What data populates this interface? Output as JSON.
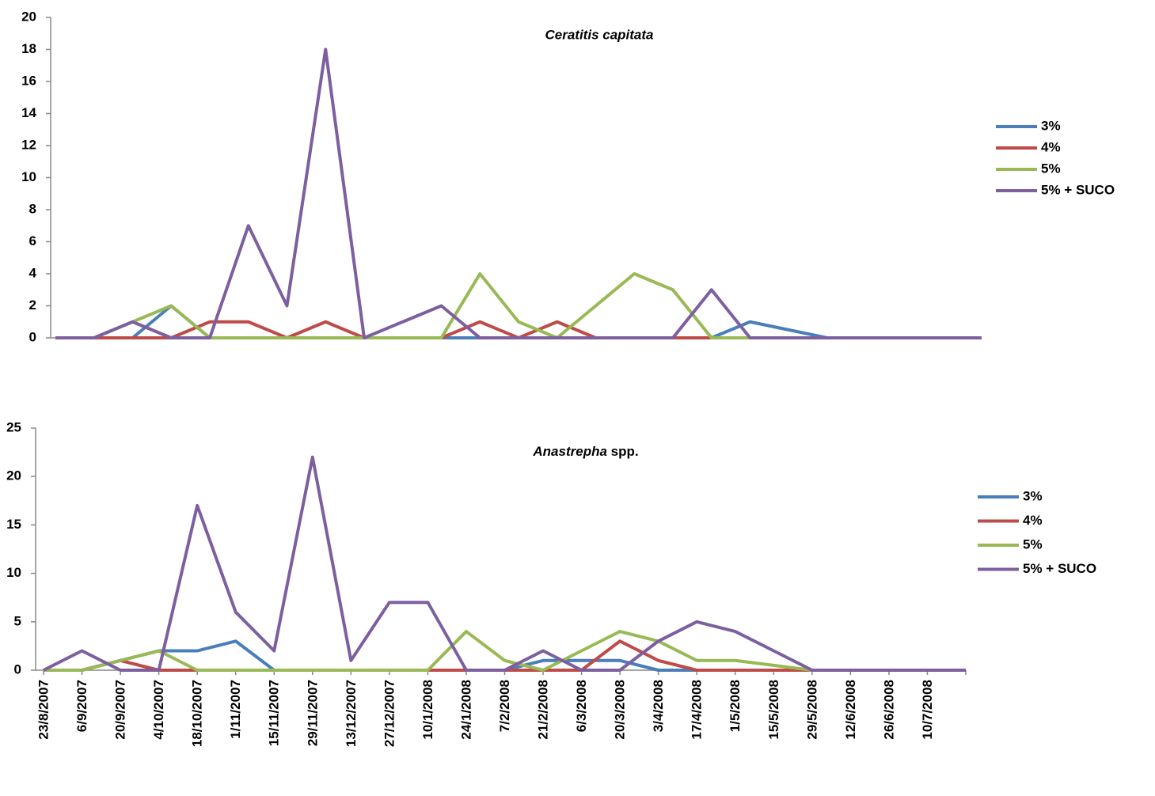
{
  "chart_data": [
    {
      "type": "line",
      "title": "Ceratitis capitata",
      "ylim": [
        0,
        20
      ],
      "yticks": [
        0,
        2,
        4,
        6,
        8,
        10,
        12,
        14,
        16,
        18,
        20
      ],
      "series": [
        {
          "name": "3%",
          "color": "#4a7ebb",
          "values": [
            0,
            0,
            0,
            2,
            0,
            0,
            0,
            0,
            0,
            0,
            0,
            0,
            0,
            0,
            0,
            0,
            0,
            0,
            1,
            0.5,
            0,
            0,
            0,
            0,
            0
          ]
        },
        {
          "name": "4%",
          "color": "#be4b48",
          "values": [
            0,
            0,
            0,
            0,
            1,
            1,
            0,
            1,
            0,
            0,
            0,
            1,
            0,
            1,
            0,
            0,
            0,
            0,
            0,
            0,
            0,
            0,
            0,
            0,
            0
          ]
        },
        {
          "name": "5%",
          "color": "#98b954",
          "values": [
            0,
            0,
            1,
            2,
            0,
            0,
            0,
            0,
            0,
            0,
            0,
            4,
            1,
            0,
            2,
            4,
            3,
            0,
            0,
            0,
            0,
            0,
            0,
            0,
            0
          ]
        },
        {
          "name": "5% + SUCO",
          "color": "#7d5fa0",
          "values": [
            0,
            0,
            1,
            0,
            0,
            7,
            2,
            18,
            0,
            1,
            2,
            0,
            0,
            0,
            0,
            0,
            0,
            3,
            0,
            0,
            0,
            0,
            0,
            0,
            0
          ]
        }
      ]
    },
    {
      "type": "line",
      "title_italic": "Anastrepha",
      "title_rest": "spp.",
      "ylim": [
        0,
        25
      ],
      "yticks": [
        0,
        5,
        10,
        15,
        20,
        25
      ],
      "categories": [
        "23/8/2007",
        "6/9/2007",
        "20/9/2007",
        "4/10/2007",
        "18/10/2007",
        "1/11/2007",
        "15/11/2007",
        "29/11/2007",
        "13/12/2007",
        "27/12/2007",
        "10/1/2008",
        "24/1/2008",
        "7/2/2008",
        "21/2/2008",
        "6/3/2008",
        "20/3/2008",
        "3/4/2008",
        "17/4/2008",
        "1/5/2008",
        "15/5/2008",
        "29/5/2008",
        "12/6/2008",
        "26/6/2008",
        "10/7/2008",
        null
      ],
      "series": [
        {
          "name": "3%",
          "color": "#4a7ebb",
          "values": [
            0,
            0,
            1,
            2,
            2,
            3,
            0,
            0,
            0,
            0,
            0,
            0,
            0,
            1,
            1,
            1,
            0,
            0,
            0,
            0,
            0,
            0,
            0,
            0,
            0
          ]
        },
        {
          "name": "4%",
          "color": "#be4b48",
          "values": [
            0,
            0,
            1,
            0,
            0,
            0,
            0,
            0,
            0,
            0,
            0,
            0,
            0,
            0,
            0,
            3,
            1,
            0,
            0,
            0,
            0,
            0,
            0,
            0,
            0
          ]
        },
        {
          "name": "5%",
          "color": "#98b954",
          "values": [
            0,
            0,
            1,
            2,
            0,
            0,
            0,
            0,
            0,
            0,
            0,
            4,
            1,
            0,
            2,
            4,
            3,
            1,
            1,
            0.5,
            0,
            0,
            0,
            0,
            0
          ]
        },
        {
          "name": "5% + SUCO",
          "color": "#7d5fa0",
          "values": [
            0,
            2,
            0,
            0,
            17,
            6,
            2,
            22,
            1,
            7,
            7,
            0,
            0,
            2,
            0,
            0,
            3,
            5,
            4,
            2,
            0,
            0,
            0,
            0,
            0
          ]
        }
      ]
    }
  ]
}
